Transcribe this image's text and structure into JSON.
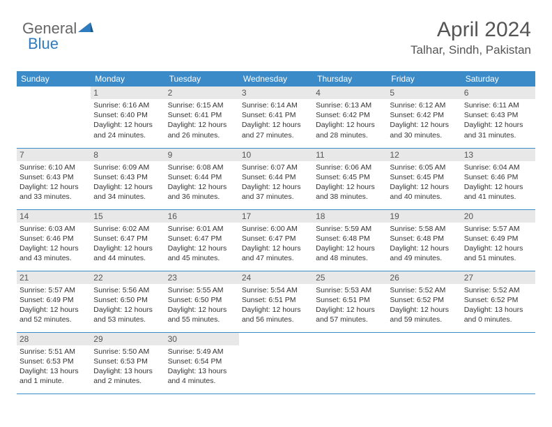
{
  "logo": {
    "text1": "General",
    "text2": "Blue"
  },
  "header": {
    "month": "April 2024",
    "location": "Talhar, Sindh, Pakistan"
  },
  "colors": {
    "header_bg": "#3b8bc9",
    "header_fg": "#ffffff",
    "daynum_bg": "#e8e8e8",
    "daynum_fg": "#555555",
    "text": "#333333",
    "border": "#3b8bc9",
    "logo_blue": "#2f7bbf"
  },
  "daynames": [
    "Sunday",
    "Monday",
    "Tuesday",
    "Wednesday",
    "Thursday",
    "Friday",
    "Saturday"
  ],
  "weeks": [
    [
      {
        "n": "",
        "sr": "",
        "ss": "",
        "dl": ""
      },
      {
        "n": "1",
        "sr": "Sunrise: 6:16 AM",
        "ss": "Sunset: 6:40 PM",
        "dl": "Daylight: 12 hours and 24 minutes."
      },
      {
        "n": "2",
        "sr": "Sunrise: 6:15 AM",
        "ss": "Sunset: 6:41 PM",
        "dl": "Daylight: 12 hours and 26 minutes."
      },
      {
        "n": "3",
        "sr": "Sunrise: 6:14 AM",
        "ss": "Sunset: 6:41 PM",
        "dl": "Daylight: 12 hours and 27 minutes."
      },
      {
        "n": "4",
        "sr": "Sunrise: 6:13 AM",
        "ss": "Sunset: 6:42 PM",
        "dl": "Daylight: 12 hours and 28 minutes."
      },
      {
        "n": "5",
        "sr": "Sunrise: 6:12 AM",
        "ss": "Sunset: 6:42 PM",
        "dl": "Daylight: 12 hours and 30 minutes."
      },
      {
        "n": "6",
        "sr": "Sunrise: 6:11 AM",
        "ss": "Sunset: 6:43 PM",
        "dl": "Daylight: 12 hours and 31 minutes."
      }
    ],
    [
      {
        "n": "7",
        "sr": "Sunrise: 6:10 AM",
        "ss": "Sunset: 6:43 PM",
        "dl": "Daylight: 12 hours and 33 minutes."
      },
      {
        "n": "8",
        "sr": "Sunrise: 6:09 AM",
        "ss": "Sunset: 6:43 PM",
        "dl": "Daylight: 12 hours and 34 minutes."
      },
      {
        "n": "9",
        "sr": "Sunrise: 6:08 AM",
        "ss": "Sunset: 6:44 PM",
        "dl": "Daylight: 12 hours and 36 minutes."
      },
      {
        "n": "10",
        "sr": "Sunrise: 6:07 AM",
        "ss": "Sunset: 6:44 PM",
        "dl": "Daylight: 12 hours and 37 minutes."
      },
      {
        "n": "11",
        "sr": "Sunrise: 6:06 AM",
        "ss": "Sunset: 6:45 PM",
        "dl": "Daylight: 12 hours and 38 minutes."
      },
      {
        "n": "12",
        "sr": "Sunrise: 6:05 AM",
        "ss": "Sunset: 6:45 PM",
        "dl": "Daylight: 12 hours and 40 minutes."
      },
      {
        "n": "13",
        "sr": "Sunrise: 6:04 AM",
        "ss": "Sunset: 6:46 PM",
        "dl": "Daylight: 12 hours and 41 minutes."
      }
    ],
    [
      {
        "n": "14",
        "sr": "Sunrise: 6:03 AM",
        "ss": "Sunset: 6:46 PM",
        "dl": "Daylight: 12 hours and 43 minutes."
      },
      {
        "n": "15",
        "sr": "Sunrise: 6:02 AM",
        "ss": "Sunset: 6:47 PM",
        "dl": "Daylight: 12 hours and 44 minutes."
      },
      {
        "n": "16",
        "sr": "Sunrise: 6:01 AM",
        "ss": "Sunset: 6:47 PM",
        "dl": "Daylight: 12 hours and 45 minutes."
      },
      {
        "n": "17",
        "sr": "Sunrise: 6:00 AM",
        "ss": "Sunset: 6:47 PM",
        "dl": "Daylight: 12 hours and 47 minutes."
      },
      {
        "n": "18",
        "sr": "Sunrise: 5:59 AM",
        "ss": "Sunset: 6:48 PM",
        "dl": "Daylight: 12 hours and 48 minutes."
      },
      {
        "n": "19",
        "sr": "Sunrise: 5:58 AM",
        "ss": "Sunset: 6:48 PM",
        "dl": "Daylight: 12 hours and 49 minutes."
      },
      {
        "n": "20",
        "sr": "Sunrise: 5:57 AM",
        "ss": "Sunset: 6:49 PM",
        "dl": "Daylight: 12 hours and 51 minutes."
      }
    ],
    [
      {
        "n": "21",
        "sr": "Sunrise: 5:57 AM",
        "ss": "Sunset: 6:49 PM",
        "dl": "Daylight: 12 hours and 52 minutes."
      },
      {
        "n": "22",
        "sr": "Sunrise: 5:56 AM",
        "ss": "Sunset: 6:50 PM",
        "dl": "Daylight: 12 hours and 53 minutes."
      },
      {
        "n": "23",
        "sr": "Sunrise: 5:55 AM",
        "ss": "Sunset: 6:50 PM",
        "dl": "Daylight: 12 hours and 55 minutes."
      },
      {
        "n": "24",
        "sr": "Sunrise: 5:54 AM",
        "ss": "Sunset: 6:51 PM",
        "dl": "Daylight: 12 hours and 56 minutes."
      },
      {
        "n": "25",
        "sr": "Sunrise: 5:53 AM",
        "ss": "Sunset: 6:51 PM",
        "dl": "Daylight: 12 hours and 57 minutes."
      },
      {
        "n": "26",
        "sr": "Sunrise: 5:52 AM",
        "ss": "Sunset: 6:52 PM",
        "dl": "Daylight: 12 hours and 59 minutes."
      },
      {
        "n": "27",
        "sr": "Sunrise: 5:52 AM",
        "ss": "Sunset: 6:52 PM",
        "dl": "Daylight: 13 hours and 0 minutes."
      }
    ],
    [
      {
        "n": "28",
        "sr": "Sunrise: 5:51 AM",
        "ss": "Sunset: 6:53 PM",
        "dl": "Daylight: 13 hours and 1 minute."
      },
      {
        "n": "29",
        "sr": "Sunrise: 5:50 AM",
        "ss": "Sunset: 6:53 PM",
        "dl": "Daylight: 13 hours and 2 minutes."
      },
      {
        "n": "30",
        "sr": "Sunrise: 5:49 AM",
        "ss": "Sunset: 6:54 PM",
        "dl": "Daylight: 13 hours and 4 minutes."
      },
      {
        "n": "",
        "sr": "",
        "ss": "",
        "dl": ""
      },
      {
        "n": "",
        "sr": "",
        "ss": "",
        "dl": ""
      },
      {
        "n": "",
        "sr": "",
        "ss": "",
        "dl": ""
      },
      {
        "n": "",
        "sr": "",
        "ss": "",
        "dl": ""
      }
    ]
  ]
}
